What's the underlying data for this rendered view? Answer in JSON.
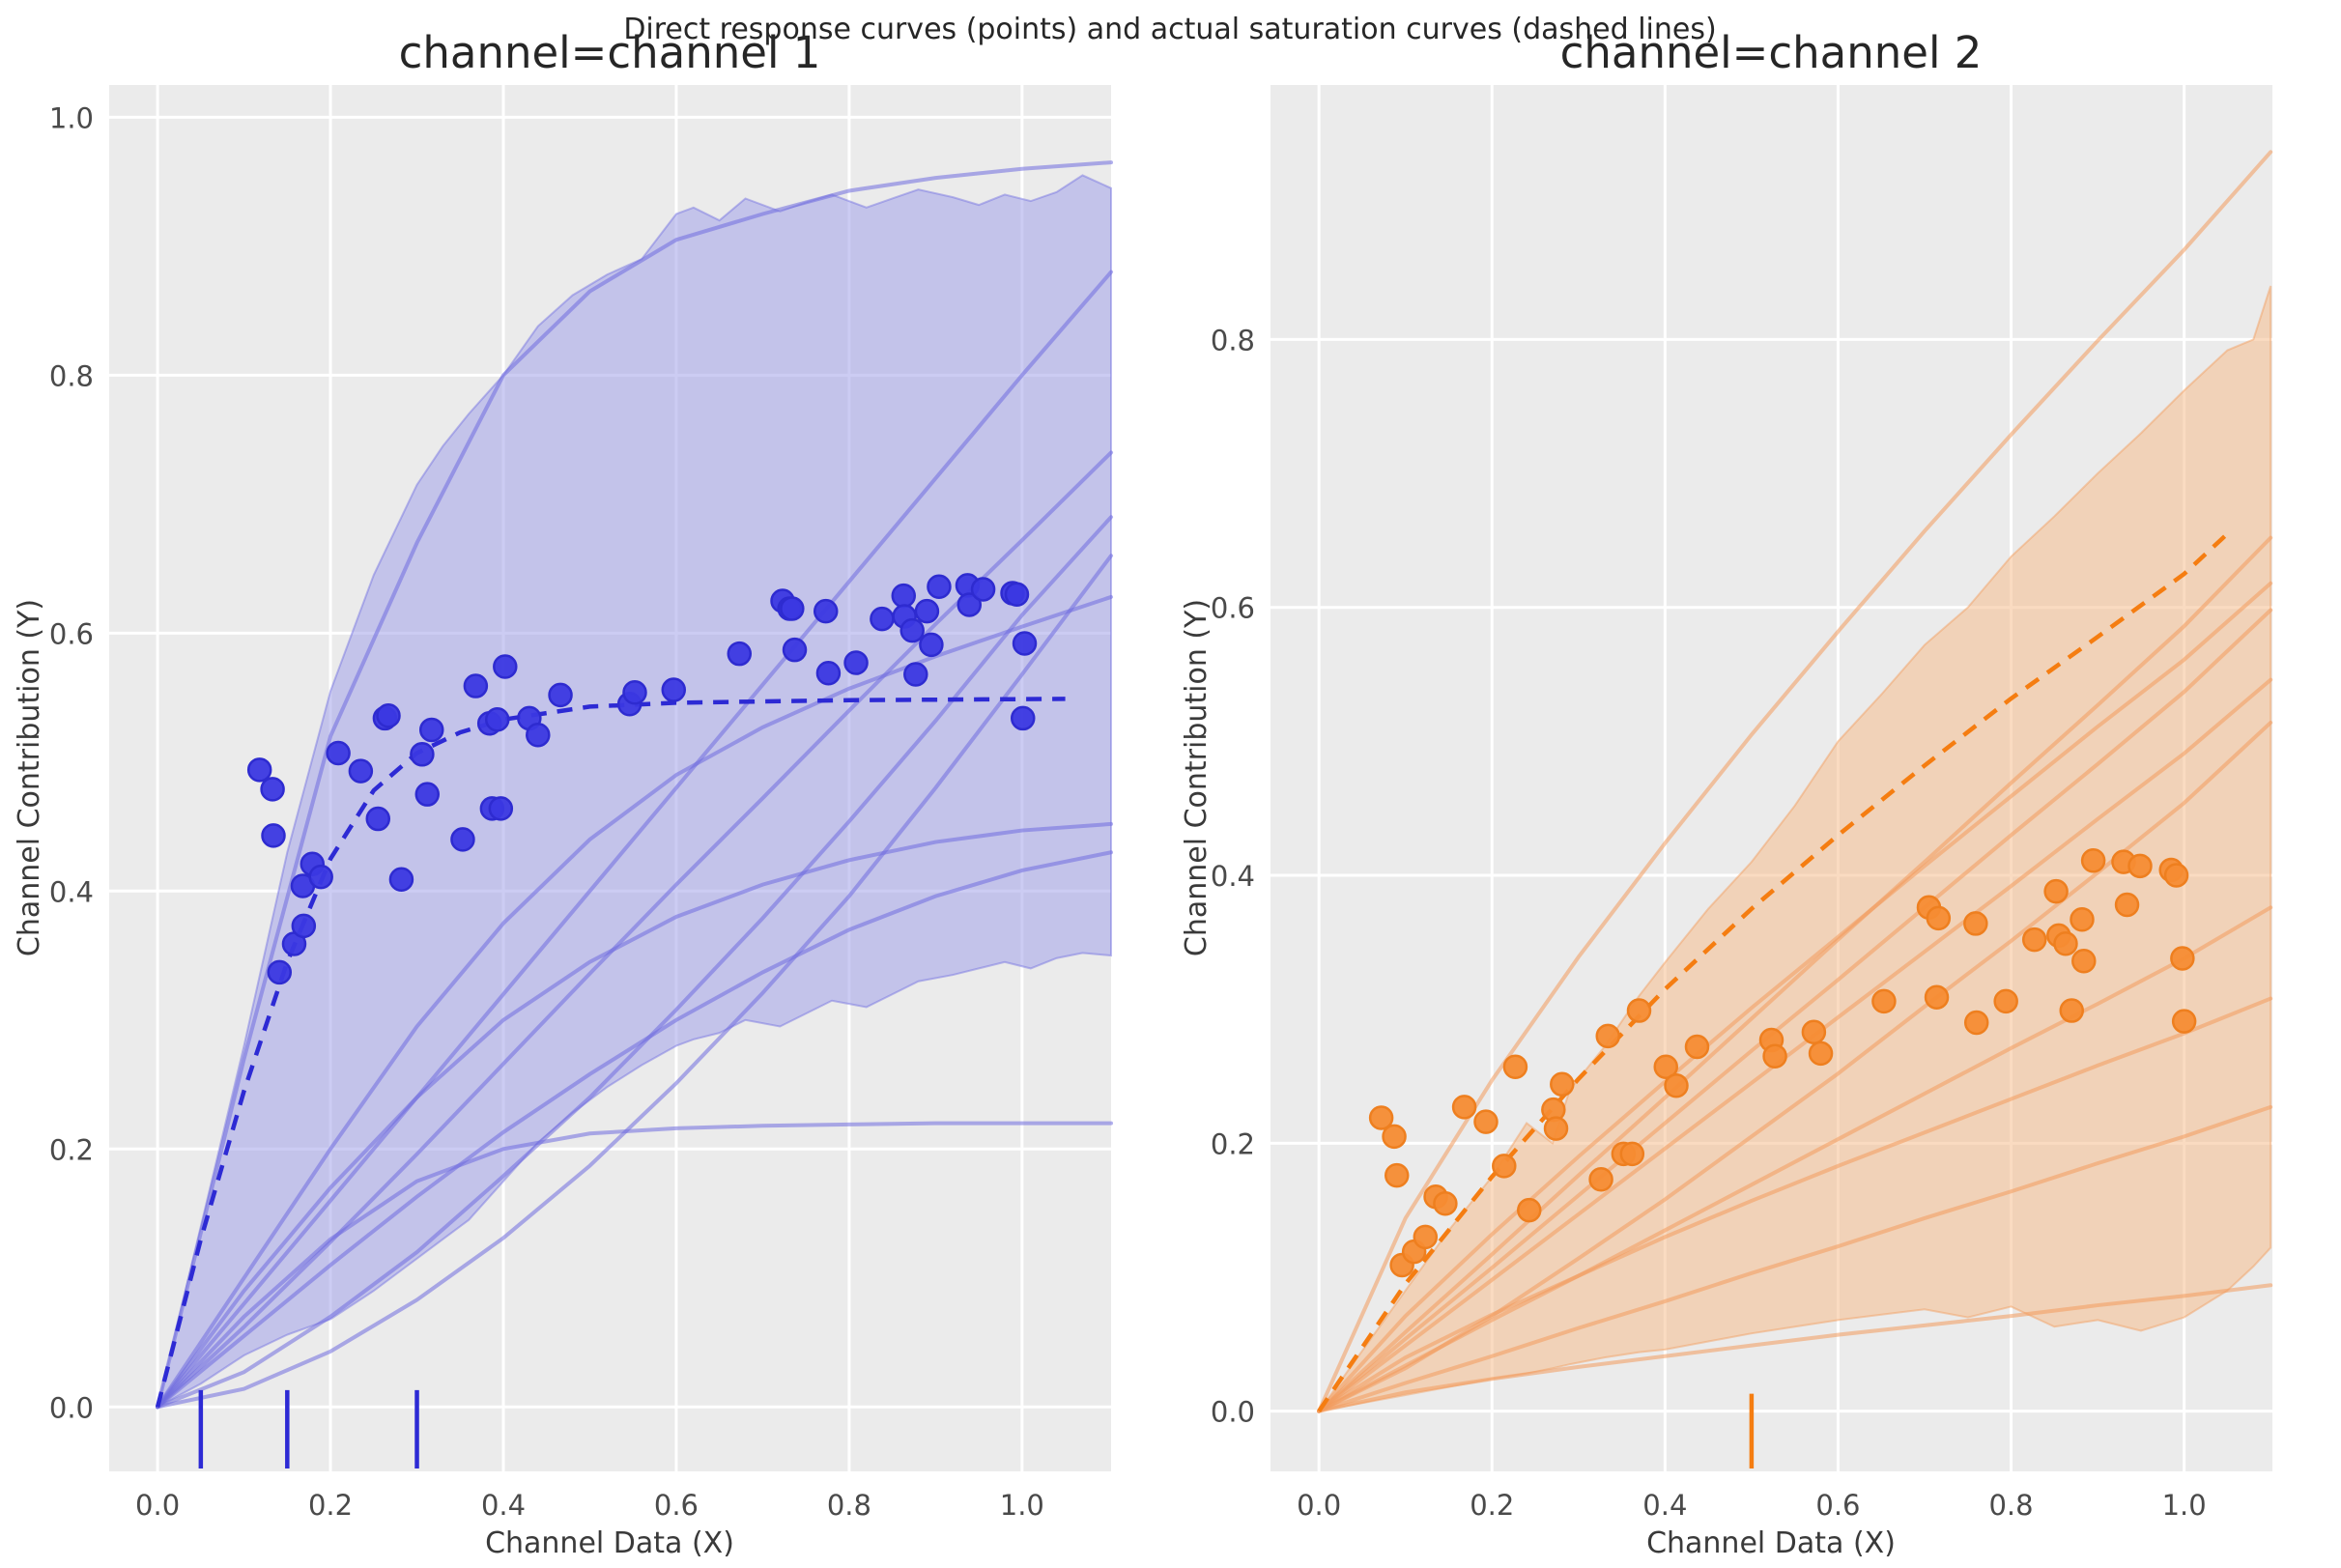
{
  "suptitle": "Direct response curves (points) and actual saturation curves (dashed lines)",
  "colors": {
    "figure_background": "#ffffff",
    "axes_background": "#ebebeb",
    "gridline": "#ffffff",
    "channel_1_accent": "#2d2ad4",
    "channel_1_point": "#3b38e2",
    "channel_1_point_edge": "#2e2bd0",
    "channel_1_curve": "#6f6cdf",
    "channel_1_band": "#a3a2ea",
    "channel_2_accent": "#f57d11",
    "channel_2_point": "#f68c33",
    "channel_2_point_edge": "#ee7f1f",
    "channel_2_curve": "#f29b5c",
    "channel_2_band": "#f5bd8e"
  },
  "chart_data": [
    {
      "type": "scatter",
      "title": "channel=channel 1",
      "xlabel": "Channel Data (X)",
      "ylabel": "Channel Contribution (Y)",
      "xlim": [
        -0.056,
        1.103
      ],
      "ylim": [
        -0.05,
        1.025
      ],
      "xticks": [
        0.0,
        0.2,
        0.4,
        0.6,
        0.8,
        1.0
      ],
      "yticks": [
        0.0,
        0.2,
        0.4,
        0.6,
        0.8,
        1.0
      ],
      "grid": true,
      "legend": "none",
      "rug_x": [
        0.05,
        0.15,
        0.3
      ],
      "points": [
        [
          0.118,
          0.494
        ],
        [
          0.133,
          0.479
        ],
        [
          0.134,
          0.443
        ],
        [
          0.141,
          0.337
        ],
        [
          0.158,
          0.359
        ],
        [
          0.168,
          0.404
        ],
        [
          0.169,
          0.373
        ],
        [
          0.179,
          0.421
        ],
        [
          0.189,
          0.411
        ],
        [
          0.209,
          0.507
        ],
        [
          0.235,
          0.493
        ],
        [
          0.255,
          0.456
        ],
        [
          0.263,
          0.534
        ],
        [
          0.267,
          0.536
        ],
        [
          0.282,
          0.409
        ],
        [
          0.306,
          0.506
        ],
        [
          0.312,
          0.475
        ],
        [
          0.317,
          0.525
        ],
        [
          0.353,
          0.44
        ],
        [
          0.368,
          0.559
        ],
        [
          0.384,
          0.53
        ],
        [
          0.387,
          0.464
        ],
        [
          0.393,
          0.533
        ],
        [
          0.397,
          0.464
        ],
        [
          0.402,
          0.574
        ],
        [
          0.43,
          0.534
        ],
        [
          0.44,
          0.521
        ],
        [
          0.466,
          0.552
        ],
        [
          0.546,
          0.545
        ],
        [
          0.552,
          0.554
        ],
        [
          0.597,
          0.556
        ],
        [
          0.673,
          0.584
        ],
        [
          0.723,
          0.625
        ],
        [
          0.731,
          0.619
        ],
        [
          0.734,
          0.619
        ],
        [
          0.737,
          0.587
        ],
        [
          0.773,
          0.617
        ],
        [
          0.776,
          0.569
        ],
        [
          0.808,
          0.577
        ],
        [
          0.838,
          0.611
        ],
        [
          0.863,
          0.629
        ],
        [
          0.864,
          0.613
        ],
        [
          0.873,
          0.602
        ],
        [
          0.877,
          0.568
        ],
        [
          0.89,
          0.617
        ],
        [
          0.895,
          0.591
        ],
        [
          0.904,
          0.636
        ],
        [
          0.937,
          0.637
        ],
        [
          0.939,
          0.622
        ],
        [
          0.955,
          0.634
        ],
        [
          0.989,
          0.631
        ],
        [
          0.994,
          0.63
        ],
        [
          1.003,
          0.592
        ],
        [
          1.001,
          0.534
        ]
      ],
      "dashed_curve": {
        "x": [
          0,
          0.05,
          0.1,
          0.15,
          0.2,
          0.25,
          0.3,
          0.35,
          0.4,
          0.5,
          0.6,
          0.8,
          1.05
        ],
        "y": [
          0,
          0.13,
          0.245,
          0.345,
          0.425,
          0.478,
          0.507,
          0.523,
          0.533,
          0.543,
          0.546,
          0.548,
          0.549
        ]
      },
      "curve_x": [
        0,
        0.1,
        0.2,
        0.3,
        0.4,
        0.5,
        0.6,
        0.7,
        0.8,
        0.9,
        1.0,
        1.103
      ],
      "sample_curves": [
        [
          0,
          0.27,
          0.52,
          0.67,
          0.8,
          0.865,
          0.905,
          0.925,
          0.943,
          0.953,
          0.96,
          0.965
        ],
        [
          0,
          0.08,
          0.16,
          0.24,
          0.32,
          0.4,
          0.48,
          0.56,
          0.64,
          0.72,
          0.8,
          0.88
        ],
        [
          0,
          0.062,
          0.128,
          0.196,
          0.266,
          0.336,
          0.405,
          0.472,
          0.54,
          0.607,
          0.672,
          0.74
        ],
        [
          0,
          0.027,
          0.07,
          0.12,
          0.179,
          0.24,
          0.308,
          0.379,
          0.454,
          0.532,
          0.614,
          0.69
        ],
        [
          0,
          0.014,
          0.043,
          0.083,
          0.131,
          0.187,
          0.251,
          0.321,
          0.396,
          0.48,
          0.568,
          0.66
        ],
        [
          0,
          0.1,
          0.2,
          0.295,
          0.375,
          0.44,
          0.49,
          0.527,
          0.557,
          0.582,
          0.605,
          0.628
        ],
        [
          0,
          0.09,
          0.17,
          0.24,
          0.3,
          0.345,
          0.38,
          0.405,
          0.424,
          0.438,
          0.447,
          0.452
        ],
        [
          0,
          0.055,
          0.11,
          0.163,
          0.213,
          0.258,
          0.3,
          0.337,
          0.37,
          0.396,
          0.416,
          0.43
        ],
        [
          0,
          0.07,
          0.13,
          0.175,
          0.2,
          0.212,
          0.216,
          0.218,
          0.219,
          0.22,
          0.22,
          0.22
        ]
      ],
      "band": {
        "x": [
          0,
          0.05,
          0.1,
          0.15,
          0.2,
          0.25,
          0.3,
          0.33,
          0.36,
          0.4,
          0.44,
          0.48,
          0.52,
          0.56,
          0.6,
          0.62,
          0.65,
          0.68,
          0.72,
          0.75,
          0.78,
          0.82,
          0.85,
          0.88,
          0.92,
          0.95,
          0.98,
          1.01,
          1.04,
          1.07,
          1.103
        ],
        "upper": [
          0,
          0.14,
          0.28,
          0.43,
          0.555,
          0.645,
          0.715,
          0.745,
          0.77,
          0.8,
          0.838,
          0.862,
          0.878,
          0.89,
          0.925,
          0.93,
          0.92,
          0.937,
          0.927,
          0.934,
          0.94,
          0.93,
          0.937,
          0.944,
          0.938,
          0.932,
          0.94,
          0.935,
          0.942,
          0.955,
          0.945
        ],
        "lower": [
          0,
          0.018,
          0.04,
          0.056,
          0.068,
          0.09,
          0.115,
          0.13,
          0.145,
          0.175,
          0.205,
          0.228,
          0.248,
          0.265,
          0.28,
          0.285,
          0.29,
          0.3,
          0.295,
          0.305,
          0.315,
          0.31,
          0.32,
          0.33,
          0.335,
          0.34,
          0.345,
          0.34,
          0.348,
          0.352,
          0.35
        ]
      }
    },
    {
      "type": "scatter",
      "title": "channel=channel 2",
      "xlabel": "Channel Data (X)",
      "ylabel": "Channel Contribution (Y)",
      "xlim": [
        -0.056,
        1.102
      ],
      "ylim": [
        -0.045,
        0.99
      ],
      "xticks": [
        0.0,
        0.2,
        0.4,
        0.6,
        0.8,
        1.0
      ],
      "yticks": [
        0.0,
        0.2,
        0.4,
        0.6,
        0.8
      ],
      "grid": true,
      "legend": "none",
      "rug_x": [
        0.5
      ],
      "points": [
        [
          0.072,
          0.219
        ],
        [
          0.087,
          0.205
        ],
        [
          0.09,
          0.176
        ],
        [
          0.096,
          0.109
        ],
        [
          0.11,
          0.119
        ],
        [
          0.123,
          0.13
        ],
        [
          0.135,
          0.16
        ],
        [
          0.146,
          0.155
        ],
        [
          0.168,
          0.227
        ],
        [
          0.193,
          0.216
        ],
        [
          0.214,
          0.183
        ],
        [
          0.227,
          0.257
        ],
        [
          0.243,
          0.15
        ],
        [
          0.271,
          0.225
        ],
        [
          0.274,
          0.211
        ],
        [
          0.281,
          0.244
        ],
        [
          0.326,
          0.173
        ],
        [
          0.334,
          0.28
        ],
        [
          0.352,
          0.192
        ],
        [
          0.362,
          0.192
        ],
        [
          0.37,
          0.299
        ],
        [
          0.401,
          0.257
        ],
        [
          0.413,
          0.243
        ],
        [
          0.437,
          0.272
        ],
        [
          0.523,
          0.277
        ],
        [
          0.527,
          0.265
        ],
        [
          0.572,
          0.283
        ],
        [
          0.58,
          0.267
        ],
        [
          0.653,
          0.306
        ],
        [
          0.705,
          0.376
        ],
        [
          0.714,
          0.309
        ],
        [
          0.716,
          0.368
        ],
        [
          0.759,
          0.364
        ],
        [
          0.76,
          0.29
        ],
        [
          0.794,
          0.306
        ],
        [
          0.827,
          0.352
        ],
        [
          0.852,
          0.388
        ],
        [
          0.855,
          0.355
        ],
        [
          0.863,
          0.349
        ],
        [
          0.87,
          0.299
        ],
        [
          0.882,
          0.367
        ],
        [
          0.884,
          0.336
        ],
        [
          0.895,
          0.411
        ],
        [
          0.93,
          0.41
        ],
        [
          0.934,
          0.378
        ],
        [
          0.949,
          0.407
        ],
        [
          0.985,
          0.404
        ],
        [
          0.991,
          0.4
        ],
        [
          0.998,
          0.338
        ],
        [
          1.0,
          0.291
        ]
      ],
      "dashed_curve": {
        "x": [
          0,
          0.1,
          0.2,
          0.3,
          0.4,
          0.5,
          0.6,
          0.7,
          0.8,
          0.9,
          1.0,
          1.05
        ],
        "y": [
          0,
          0.095,
          0.175,
          0.248,
          0.315,
          0.375,
          0.43,
          0.482,
          0.532,
          0.578,
          0.625,
          0.655
        ]
      },
      "curve_x": [
        0,
        0.1,
        0.2,
        0.3,
        0.4,
        0.5,
        0.6,
        0.7,
        0.8,
        0.9,
        1.0,
        1.1
      ],
      "sample_curves": [
        [
          0,
          0.144,
          0.247,
          0.339,
          0.424,
          0.505,
          0.582,
          0.657,
          0.729,
          0.799,
          0.867,
          0.94
        ],
        [
          0,
          0.059,
          0.117,
          0.176,
          0.234,
          0.293,
          0.352,
          0.41,
          0.469,
          0.527,
          0.586,
          0.652
        ],
        [
          0,
          0.071,
          0.132,
          0.19,
          0.246,
          0.301,
          0.354,
          0.407,
          0.459,
          0.511,
          0.561,
          0.618
        ],
        [
          0,
          0.054,
          0.107,
          0.161,
          0.215,
          0.269,
          0.322,
          0.376,
          0.43,
          0.483,
          0.537,
          0.598
        ],
        [
          0,
          0.049,
          0.098,
          0.147,
          0.196,
          0.245,
          0.294,
          0.343,
          0.392,
          0.442,
          0.491,
          0.546
        ],
        [
          0,
          0.032,
          0.071,
          0.114,
          0.158,
          0.205,
          0.252,
          0.302,
          0.351,
          0.402,
          0.454,
          0.514
        ],
        [
          0,
          0.034,
          0.068,
          0.101,
          0.135,
          0.169,
          0.203,
          0.237,
          0.271,
          0.304,
          0.338,
          0.376
        ],
        [
          0,
          0.04,
          0.072,
          0.101,
          0.13,
          0.157,
          0.183,
          0.208,
          0.233,
          0.258,
          0.282,
          0.308
        ],
        [
          0,
          0.021,
          0.041,
          0.062,
          0.082,
          0.103,
          0.123,
          0.144,
          0.164,
          0.185,
          0.205,
          0.227
        ],
        [
          0,
          0.014,
          0.024,
          0.033,
          0.041,
          0.049,
          0.057,
          0.064,
          0.071,
          0.079,
          0.086,
          0.094
        ]
      ],
      "band": {
        "x": [
          0,
          0.05,
          0.1,
          0.15,
          0.2,
          0.24,
          0.27,
          0.29,
          0.33,
          0.37,
          0.4,
          0.45,
          0.5,
          0.55,
          0.6,
          0.65,
          0.7,
          0.75,
          0.8,
          0.85,
          0.9,
          0.95,
          1.0,
          1.05,
          1.08,
          1.1
        ],
        "upper": [
          0,
          0.045,
          0.09,
          0.135,
          0.175,
          0.215,
          0.2,
          0.24,
          0.272,
          0.31,
          0.335,
          0.375,
          0.41,
          0.452,
          0.5,
          0.535,
          0.572,
          0.6,
          0.638,
          0.668,
          0.7,
          0.73,
          0.762,
          0.792,
          0.8,
          0.84
        ],
        "lower": [
          0,
          0.006,
          0.012,
          0.018,
          0.024,
          0.028,
          0.032,
          0.035,
          0.04,
          0.044,
          0.046,
          0.052,
          0.058,
          0.063,
          0.068,
          0.072,
          0.076,
          0.07,
          0.078,
          0.063,
          0.068,
          0.06,
          0.07,
          0.09,
          0.108,
          0.122
        ]
      }
    }
  ]
}
